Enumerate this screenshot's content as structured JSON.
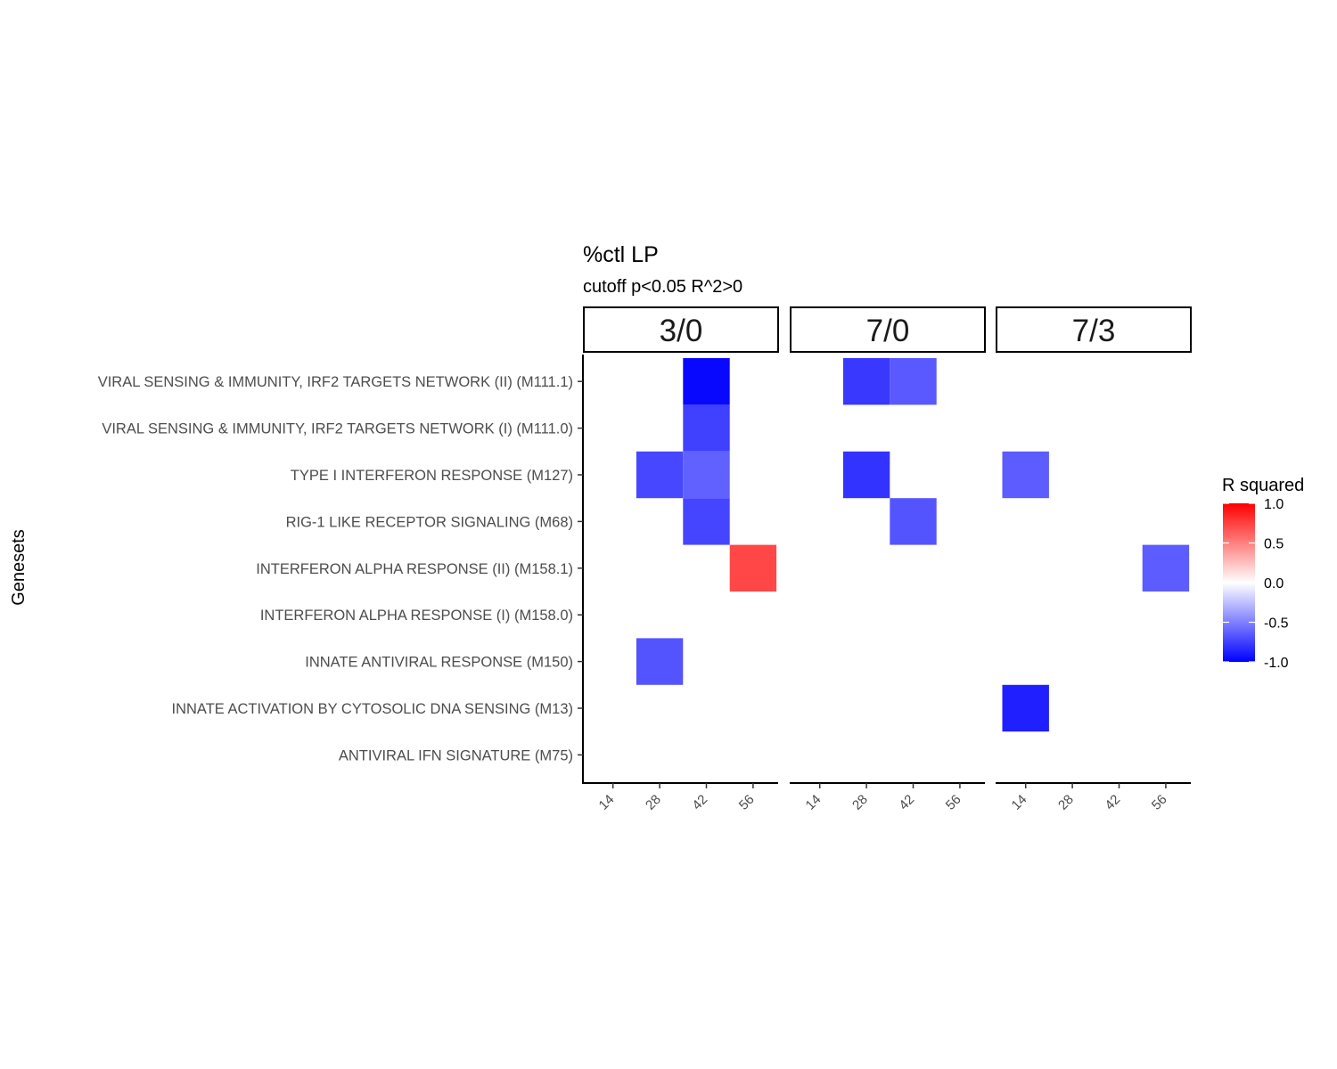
{
  "chart_data": {
    "type": "heatmap",
    "title": "%ctl LP",
    "subtitle": "cutoff p<0.05 R^2>0",
    "ylabel": "Genesets",
    "xlabel": "",
    "facets": [
      "3/0",
      "7/0",
      "7/3"
    ],
    "x": [
      "14",
      "28",
      "42",
      "56"
    ],
    "y": [
      "VIRAL SENSING & IMMUNITY,  IRF2 TARGETS NETWORK (II) (M111.1)",
      "VIRAL SENSING & IMMUNITY,  IRF2 TARGETS NETWORK (I) (M111.0)",
      "TYPE I INTERFERON RESPONSE (M127)",
      "RIG-1 LIKE RECEPTOR SIGNALING (M68)",
      "INTERFERON ALPHA RESPONSE (II) (M158.1)",
      "INTERFERON ALPHA RESPONSE (I) (M158.0)",
      "INNATE ANTIVIRAL RESPONSE (M150)",
      "INNATE ACTIVATION BY CYTOSOLIC DNA SENSING (M13)",
      "ANTIVIRAL IFN SIGNATURE (M75)"
    ],
    "cells": [
      {
        "facet": "3/0",
        "x": "42",
        "y": "VIRAL SENSING & IMMUNITY,  IRF2 TARGETS NETWORK (II) (M111.1)",
        "value": -0.97
      },
      {
        "facet": "3/0",
        "x": "42",
        "y": "VIRAL SENSING & IMMUNITY,  IRF2 TARGETS NETWORK (I) (M111.0)",
        "value": -0.75
      },
      {
        "facet": "3/0",
        "x": "28",
        "y": "TYPE I INTERFERON RESPONSE (M127)",
        "value": -0.72
      },
      {
        "facet": "3/0",
        "x": "42",
        "y": "TYPE I INTERFERON RESPONSE (M127)",
        "value": -0.62
      },
      {
        "facet": "3/0",
        "x": "42",
        "y": "RIG-1 LIKE RECEPTOR SIGNALING (M68)",
        "value": -0.73
      },
      {
        "facet": "3/0",
        "x": "56",
        "y": "INTERFERON ALPHA RESPONSE (II) (M158.1)",
        "value": 0.72
      },
      {
        "facet": "3/0",
        "x": "28",
        "y": "INNATE ANTIVIRAL RESPONSE (M150)",
        "value": -0.67
      },
      {
        "facet": "7/0",
        "x": "28",
        "y": "VIRAL SENSING & IMMUNITY,  IRF2 TARGETS NETWORK (II) (M111.1)",
        "value": -0.78
      },
      {
        "facet": "7/0",
        "x": "42",
        "y": "VIRAL SENSING & IMMUNITY,  IRF2 TARGETS NETWORK (II) (M111.1)",
        "value": -0.65
      },
      {
        "facet": "7/0",
        "x": "28",
        "y": "TYPE I INTERFERON RESPONSE (M127)",
        "value": -0.8
      },
      {
        "facet": "7/0",
        "x": "42",
        "y": "RIG-1 LIKE RECEPTOR SIGNALING (M68)",
        "value": -0.67
      },
      {
        "facet": "7/3",
        "x": "14",
        "y": "TYPE I INTERFERON RESPONSE (M127)",
        "value": -0.64
      },
      {
        "facet": "7/3",
        "x": "56",
        "y": "INTERFERON ALPHA RESPONSE (II) (M158.1)",
        "value": -0.64
      },
      {
        "facet": "7/3",
        "x": "14",
        "y": "INNATE ACTIVATION BY CYTOSOLIC DNA SENSING (M13)",
        "value": -0.88
      }
    ],
    "legend": {
      "title": "R squared",
      "ticks": [
        "1.0",
        "0.5",
        "0.0",
        "-0.5",
        "-1.0"
      ],
      "range": [
        -1,
        1
      ],
      "low_color": "#0000ff",
      "mid_color": "#ffffff",
      "high_color": "#ff0000",
      "placement": "right"
    },
    "grid": false
  }
}
